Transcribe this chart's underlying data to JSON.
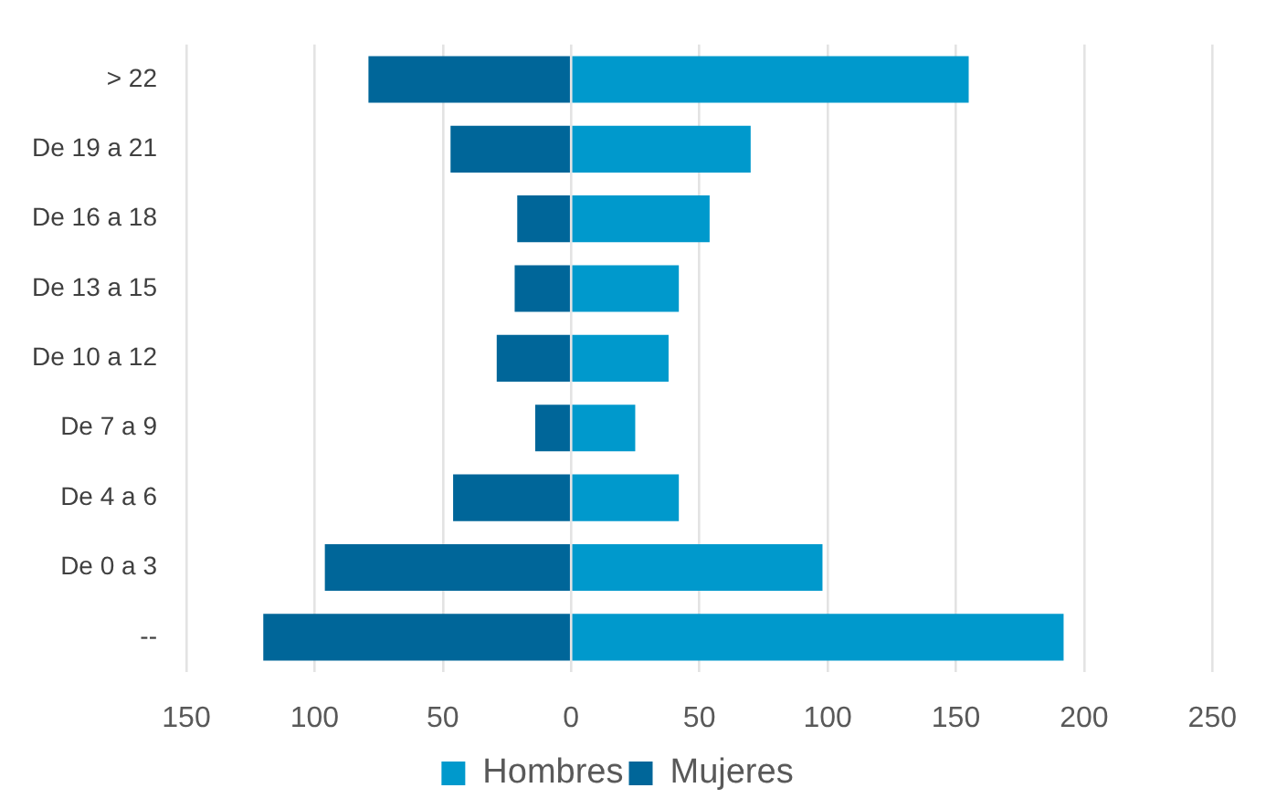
{
  "chart_data": {
    "type": "bar",
    "orientation": "horizontal",
    "stacked": true,
    "categories": [
      "> 22",
      "De 19 a 21",
      "De 16 a 18",
      "De 13 a 15",
      "De 10 a 12",
      "De 7 a 9",
      "De 4 a 6",
      "De 0 a 3",
      "--"
    ],
    "series": [
      {
        "name": "Hombres",
        "color": "#0099cc",
        "values": [
          155,
          70,
          54,
          42,
          38,
          25,
          42,
          98,
          192
        ]
      },
      {
        "name": "Mujeres",
        "color": "#006699",
        "values": [
          -79,
          -47,
          -21,
          -22,
          -29,
          -14,
          -46,
          -96,
          -120
        ]
      }
    ],
    "xlim": [
      -150,
      250
    ],
    "xticks": [
      {
        "value": -150,
        "label": "150"
      },
      {
        "value": -100,
        "label": "100"
      },
      {
        "value": -50,
        "label": "50"
      },
      0,
      50,
      100,
      150,
      200,
      250
    ],
    "grid": "x",
    "legend": "bottom"
  }
}
